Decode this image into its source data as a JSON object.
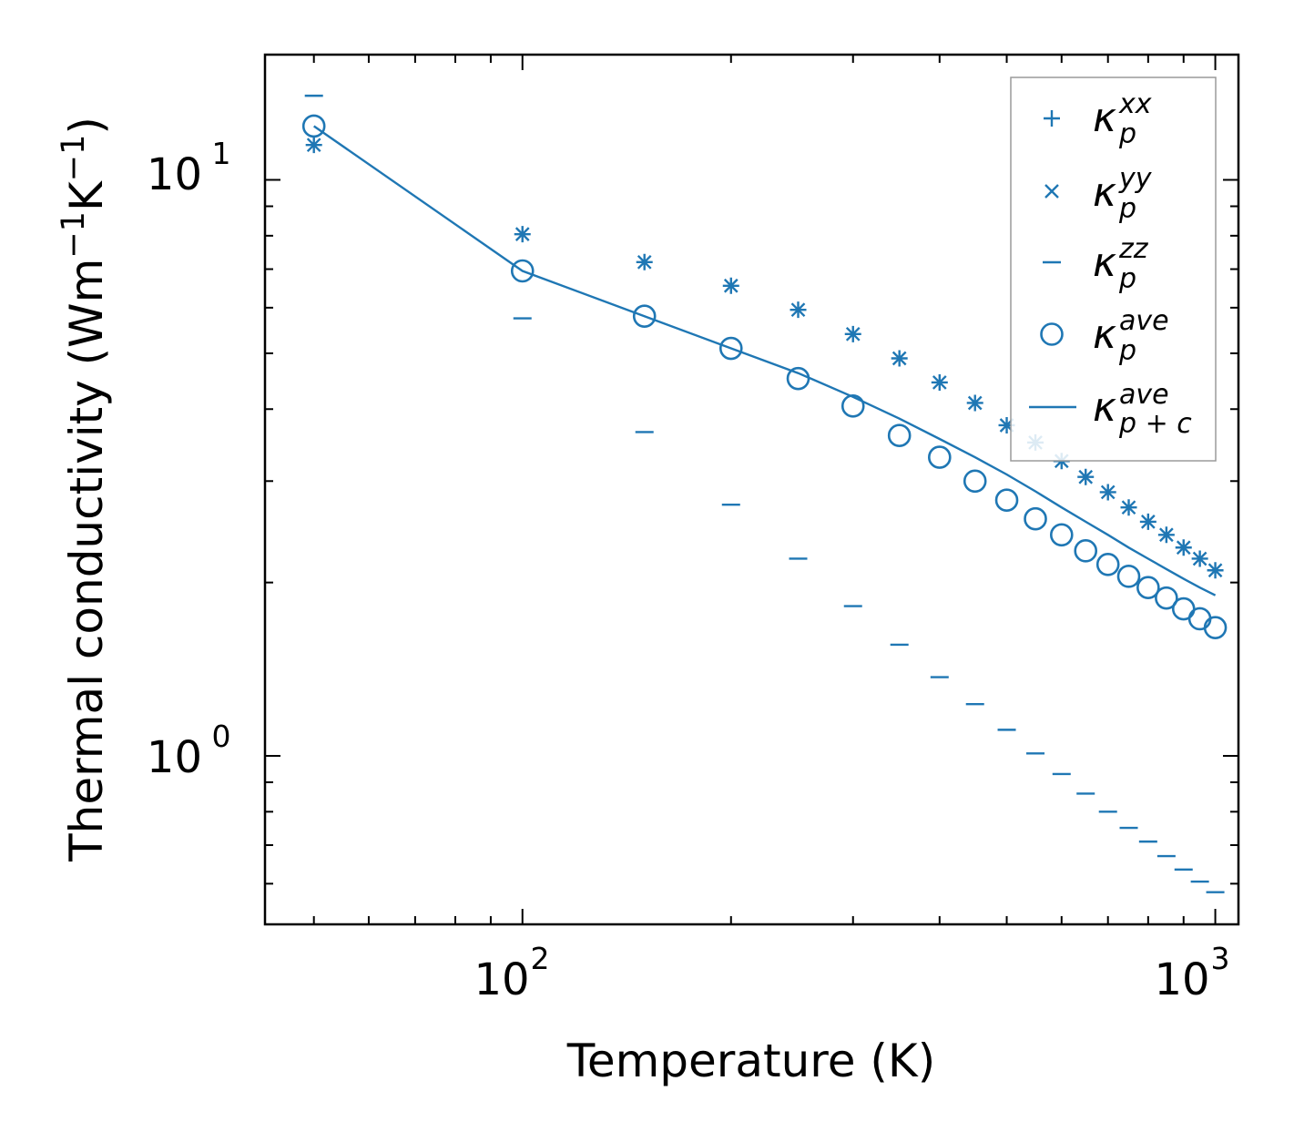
{
  "chart_data": {
    "type": "scatter",
    "title": "",
    "xlabel": "Temperature (K)",
    "ylabel": "Thermal conductivity (Wm$^{-1}$K$^{-1}$)",
    "ylabel_parts": {
      "base": "Thermal conductivity (Wm",
      "sup1": "−1",
      "mid": "K",
      "sup2": "−1",
      "end": ")"
    },
    "xscale": "log",
    "yscale": "log",
    "xlim": [
      42.5,
      1080
    ],
    "ylim": [
      0.51,
      16.5
    ],
    "x_ticks": [
      {
        "base": "10",
        "exp": "2",
        "value": 100
      },
      {
        "base": "10",
        "exp": "3",
        "value": 1000
      }
    ],
    "y_ticks": [
      {
        "base": "10",
        "exp": "0",
        "value": 1
      },
      {
        "base": "10",
        "exp": "1",
        "value": 10
      }
    ],
    "color": "#1f77b4",
    "legend_position": "top-right",
    "x": [
      50,
      100,
      150,
      200,
      250,
      300,
      350,
      400,
      450,
      500,
      550,
      600,
      650,
      700,
      750,
      800,
      850,
      900,
      950,
      1000
    ],
    "series": [
      {
        "name": "κ_p^xx",
        "marker": "plus",
        "values": [
          11.5,
          8.05,
          7.2,
          6.55,
          5.95,
          5.4,
          4.9,
          4.45,
          4.1,
          3.75,
          3.5,
          3.25,
          3.05,
          2.87,
          2.7,
          2.55,
          2.42,
          2.3,
          2.2,
          2.1
        ]
      },
      {
        "name": "κ_p^yy",
        "marker": "x",
        "values": [
          11.5,
          8.05,
          7.2,
          6.55,
          5.95,
          5.4,
          4.9,
          4.45,
          4.1,
          3.75,
          3.5,
          3.25,
          3.05,
          2.87,
          2.7,
          2.55,
          2.42,
          2.3,
          2.2,
          2.1
        ]
      },
      {
        "name": "κ_p^zz",
        "marker": "hline",
        "values": [
          14.0,
          5.75,
          3.65,
          2.73,
          2.2,
          1.82,
          1.56,
          1.37,
          1.23,
          1.11,
          1.01,
          0.93,
          0.86,
          0.8,
          0.75,
          0.71,
          0.67,
          0.635,
          0.605,
          0.58
        ]
      },
      {
        "name": "κ_p^ave",
        "marker": "circle",
        "values": [
          12.4,
          6.95,
          5.8,
          5.1,
          4.52,
          4.05,
          3.6,
          3.3,
          3.0,
          2.78,
          2.58,
          2.42,
          2.27,
          2.15,
          2.05,
          1.96,
          1.88,
          1.8,
          1.73,
          1.67
        ]
      },
      {
        "name": "κ_p+c^ave",
        "marker": "line",
        "values": [
          12.4,
          6.95,
          5.8,
          5.1,
          4.62,
          4.2,
          3.85,
          3.55,
          3.3,
          3.08,
          2.88,
          2.7,
          2.55,
          2.42,
          2.3,
          2.2,
          2.11,
          2.03,
          1.96,
          1.9
        ]
      }
    ],
    "legend": [
      {
        "symbol": "κ",
        "sub": "p",
        "sup": "xx"
      },
      {
        "symbol": "κ",
        "sub": "p",
        "sup": "yy"
      },
      {
        "symbol": "κ",
        "sub": "p",
        "sup": "zz"
      },
      {
        "symbol": "κ",
        "sub": "p",
        "sup": "ave"
      },
      {
        "symbol": "κ",
        "sub": "p + c",
        "sup": "ave"
      }
    ]
  }
}
